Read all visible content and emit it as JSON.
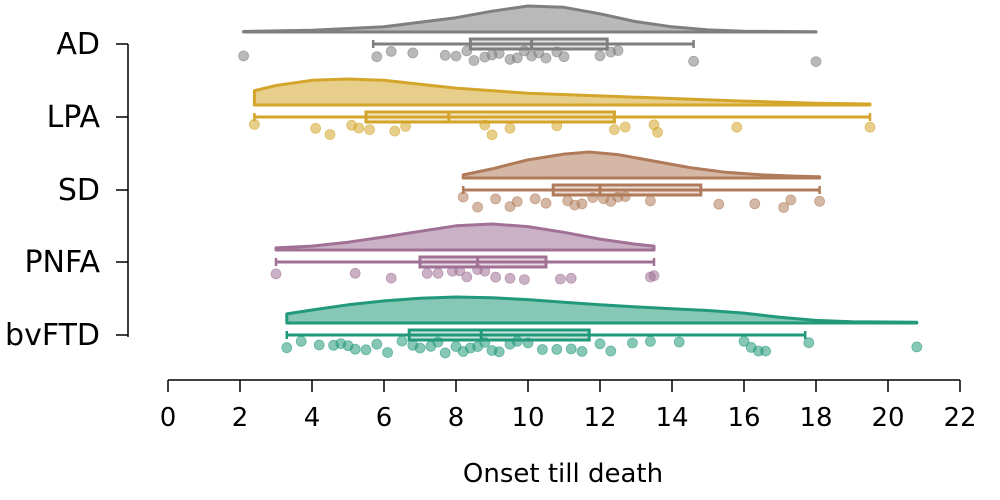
{
  "chart_data": {
    "type": "raincloud",
    "title": "",
    "xlabel": "Onset till death",
    "ylabel": "",
    "xlim": [
      0,
      22
    ],
    "x_ticks": [
      0,
      2,
      4,
      6,
      8,
      10,
      12,
      14,
      16,
      18,
      20,
      22
    ],
    "x_tick_labels": [
      "0",
      "2",
      "4",
      "6",
      "8",
      "10",
      "12",
      "14",
      "16",
      "18",
      "20",
      "22"
    ],
    "grid": false,
    "legend": "none",
    "categories": [
      "AD",
      "LPA",
      "SD",
      "PNFA",
      "bvFTD"
    ],
    "series": [
      {
        "category": "AD",
        "color": "#7f7f7f",
        "range": [
          2.1,
          18.0
        ],
        "box": {
          "whisker_low": 5.7,
          "q1": 8.4,
          "median": 10.1,
          "q3": 12.2,
          "whisker_high": 14.6
        },
        "density": [
          [
            2.1,
            0.02
          ],
          [
            4,
            0.07
          ],
          [
            6,
            0.2
          ],
          [
            8,
            0.55
          ],
          [
            9,
            0.8
          ],
          [
            10,
            1.0
          ],
          [
            11,
            0.95
          ],
          [
            12,
            0.7
          ],
          [
            13,
            0.4
          ],
          [
            14,
            0.2
          ],
          [
            15,
            0.08
          ],
          [
            16,
            0.03
          ],
          [
            18,
            0.01
          ]
        ],
        "points": [
          2.1,
          5.8,
          6.2,
          6.8,
          7.7,
          8.0,
          8.3,
          8.5,
          8.8,
          9.0,
          9.2,
          9.5,
          9.7,
          9.9,
          10.1,
          10.3,
          10.5,
          10.8,
          11.0,
          12.0,
          12.3,
          12.5,
          14.6,
          18.0
        ]
      },
      {
        "category": "LPA",
        "color": "#d4a52b",
        "range": [
          2.4,
          19.5
        ],
        "box": {
          "whisker_low": 2.4,
          "q1": 5.5,
          "median": 7.8,
          "q3": 12.4,
          "whisker_high": 19.5
        },
        "density": [
          [
            2.4,
            0.55
          ],
          [
            3,
            0.75
          ],
          [
            4,
            0.95
          ],
          [
            5,
            1.0
          ],
          [
            6,
            0.95
          ],
          [
            7,
            0.8
          ],
          [
            8,
            0.65
          ],
          [
            10,
            0.45
          ],
          [
            12,
            0.35
          ],
          [
            14,
            0.25
          ],
          [
            16,
            0.15
          ],
          [
            18,
            0.07
          ],
          [
            19.5,
            0.04
          ]
        ],
        "points": [
          2.4,
          4.1,
          4.5,
          5.1,
          5.3,
          5.6,
          6.3,
          6.6,
          8.8,
          9.0,
          9.5,
          10.8,
          12.4,
          12.7,
          13.5,
          13.6,
          15.8,
          19.5
        ]
      },
      {
        "category": "SD",
        "color": "#b07b5a",
        "range": [
          8.2,
          18.1
        ],
        "box": {
          "whisker_low": 8.2,
          "q1": 10.7,
          "median": 12.0,
          "q3": 14.8,
          "whisker_high": 18.1
        },
        "density": [
          [
            8.2,
            0.12
          ],
          [
            9,
            0.35
          ],
          [
            10,
            0.7
          ],
          [
            11,
            0.92
          ],
          [
            11.7,
            1.0
          ],
          [
            12.5,
            0.9
          ],
          [
            13.5,
            0.65
          ],
          [
            14.5,
            0.4
          ],
          [
            15.5,
            0.22
          ],
          [
            16.5,
            0.12
          ],
          [
            17.5,
            0.07
          ],
          [
            18.1,
            0.05
          ]
        ],
        "points": [
          8.2,
          8.6,
          9.1,
          9.5,
          9.7,
          10.2,
          10.5,
          11.1,
          11.3,
          11.5,
          11.8,
          12.1,
          12.3,
          12.5,
          12.7,
          13.4,
          15.3,
          16.3,
          17.1,
          17.3,
          18.1
        ]
      },
      {
        "category": "PNFA",
        "color": "#a07195",
        "range": [
          3.0,
          13.5
        ],
        "box": {
          "whisker_low": 3.0,
          "q1": 7.0,
          "median": 8.6,
          "q3": 10.5,
          "whisker_high": 13.5
        },
        "density": [
          [
            3.0,
            0.08
          ],
          [
            4,
            0.15
          ],
          [
            5,
            0.3
          ],
          [
            6,
            0.5
          ],
          [
            7,
            0.72
          ],
          [
            8,
            0.93
          ],
          [
            9,
            1.0
          ],
          [
            10,
            0.9
          ],
          [
            11,
            0.68
          ],
          [
            12,
            0.42
          ],
          [
            13,
            0.22
          ],
          [
            13.5,
            0.15
          ]
        ],
        "points": [
          3.0,
          5.2,
          6.2,
          7.2,
          7.5,
          7.9,
          8.1,
          8.3,
          8.6,
          8.8,
          9.1,
          9.5,
          9.9,
          10.9,
          11.2,
          13.4,
          13.5
        ]
      },
      {
        "category": "bvFTD",
        "color": "#22997a",
        "range": [
          3.3,
          20.8
        ],
        "box": {
          "whisker_low": 3.3,
          "q1": 6.7,
          "median": 8.7,
          "q3": 11.7,
          "whisker_high": 17.7
        },
        "density": [
          [
            3.3,
            0.35
          ],
          [
            4,
            0.5
          ],
          [
            5,
            0.7
          ],
          [
            6,
            0.85
          ],
          [
            7,
            0.95
          ],
          [
            8,
            1.0
          ],
          [
            9,
            0.97
          ],
          [
            10,
            0.9
          ],
          [
            11,
            0.8
          ],
          [
            12,
            0.7
          ],
          [
            13,
            0.62
          ],
          [
            14,
            0.55
          ],
          [
            15,
            0.48
          ],
          [
            16,
            0.38
          ],
          [
            17,
            0.22
          ],
          [
            18,
            0.1
          ],
          [
            19,
            0.05
          ],
          [
            20.8,
            0.03
          ]
        ],
        "points": [
          3.3,
          3.7,
          4.2,
          4.6,
          4.8,
          5.0,
          5.2,
          5.5,
          5.8,
          6.1,
          6.5,
          6.8,
          7.0,
          7.3,
          7.5,
          7.7,
          8.0,
          8.2,
          8.4,
          8.6,
          8.8,
          9.0,
          9.2,
          9.5,
          9.7,
          10.0,
          10.4,
          10.8,
          11.2,
          11.5,
          12.0,
          12.3,
          12.9,
          13.4,
          14.2,
          16.0,
          16.2,
          16.4,
          16.6,
          17.8,
          20.8
        ]
      }
    ]
  }
}
